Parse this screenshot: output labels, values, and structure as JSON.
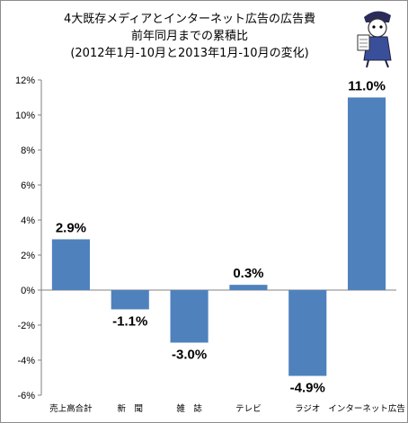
{
  "chart_data": {
    "type": "bar",
    "title_lines": [
      "4大既存メディアとインターネット広告の広告費",
      "前年同月までの累積比",
      "(2012年1月-10月と2013年1月-10月の変化)"
    ],
    "categories": [
      "売上高合計",
      "新　聞",
      "雑　誌",
      "テレビ",
      "ラジオ",
      "インターネット広告"
    ],
    "values": [
      2.9,
      -1.1,
      -3.0,
      0.3,
      -4.9,
      11.0
    ],
    "data_labels": [
      "2.9%",
      "-1.1%",
      "-3.0%",
      "0.3%",
      "-4.9%",
      "11.0%"
    ],
    "y_ticks": [
      12,
      10,
      8,
      6,
      4,
      2,
      0,
      -2,
      -4,
      -6
    ],
    "y_tick_labels": [
      "12%",
      "10%",
      "8%",
      "6%",
      "4%",
      "2%",
      "0%",
      "-2%",
      "-4%",
      "-6%"
    ],
    "ylim": [
      -6,
      12
    ],
    "grid": false,
    "legend": "none",
    "bar_color": "#4f81bd"
  }
}
